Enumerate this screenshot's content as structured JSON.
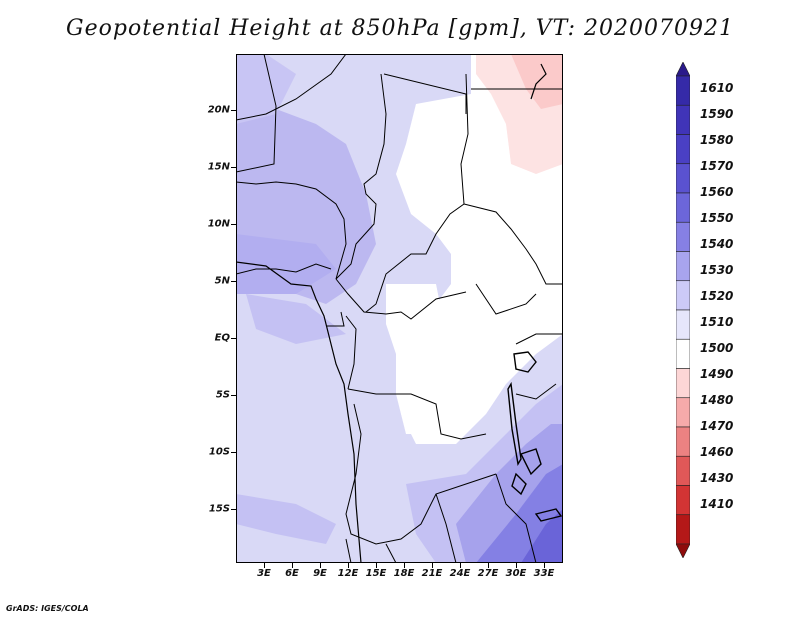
{
  "title": "Geopotential Height at 850hPa [gpm], VT: 2020070921",
  "credit": "GrADS: IGES/COLA",
  "map": {
    "lat_labels": [
      "20N",
      "15N",
      "10N",
      "5N",
      "EQ",
      "5S",
      "10S",
      "15S"
    ],
    "lon_labels": [
      "3E",
      "6E",
      "9E",
      "12E",
      "15E",
      "18E",
      "21E",
      "24E",
      "27E",
      "30E",
      "33E"
    ]
  },
  "colorbar": {
    "labels": [
      "1610",
      "1590",
      "1580",
      "1570",
      "1560",
      "1550",
      "1540",
      "1530",
      "1520",
      "1510",
      "1500",
      "1490",
      "1480",
      "1470",
      "1460",
      "1430",
      "1410"
    ],
    "colors": [
      "#2a1a8a",
      "#352aa8",
      "#4034b8",
      "#4a40c4",
      "#5a52d0",
      "#6c66da",
      "#8680e4",
      "#a8a4ee",
      "#cccaf7",
      "#e6e6fb",
      "#ffffff",
      "#fdd6d6",
      "#f6aaaa",
      "#ec8282",
      "#e05858",
      "#d23434",
      "#b41818",
      "#8e0c0c"
    ]
  }
}
